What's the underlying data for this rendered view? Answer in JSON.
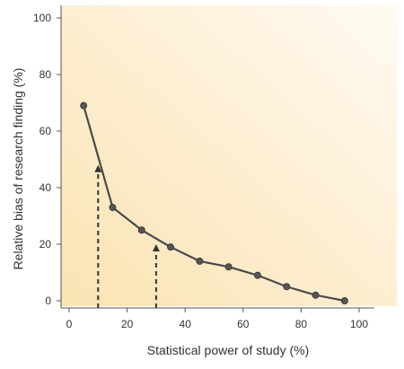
{
  "chart_data": {
    "type": "line",
    "xlabel": "Statistical power of study (%)",
    "ylabel": "Relative bias of research finding (%)",
    "xlim": [
      0,
      100
    ],
    "ylim": [
      0,
      100
    ],
    "x_ticks": [
      "0",
      "20",
      "40",
      "60",
      "80",
      "100"
    ],
    "y_ticks": [
      "0",
      "20",
      "40",
      "60",
      "80",
      "100"
    ],
    "grid": false,
    "legend": "none",
    "series": [
      {
        "x": [
          5,
          15,
          25,
          35,
          45,
          55,
          65,
          75,
          85,
          95
        ],
        "y": [
          69,
          33,
          25,
          19,
          14,
          12,
          9,
          5,
          2,
          0
        ],
        "color": "#4a4a4a"
      }
    ],
    "annotations": [
      {
        "type": "dashed-arrow",
        "x": 10,
        "y_from": 0,
        "y_to": 48
      },
      {
        "type": "dashed-arrow",
        "x": 30,
        "y_from": 0,
        "y_to": 20
      }
    ],
    "background_gradient": [
      "#fbe3b2",
      "#fffaf2"
    ]
  }
}
